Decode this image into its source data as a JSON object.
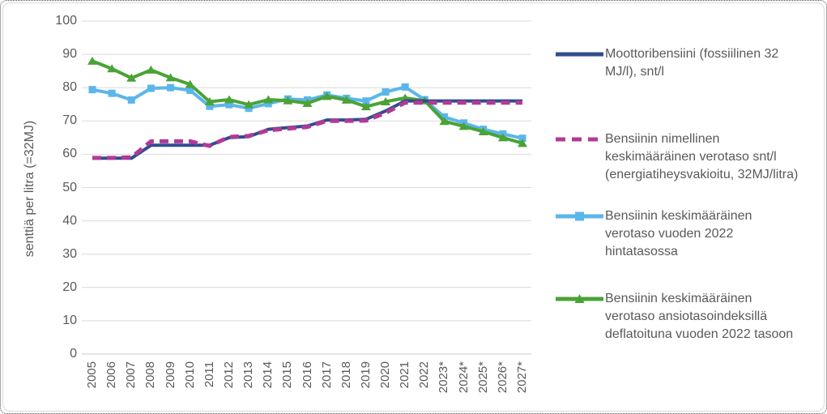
{
  "chart_data": {
    "type": "line",
    "title": "",
    "xlabel": "",
    "ylabel": "senttiä per litra (=32MJ)",
    "ylim": [
      0,
      100
    ],
    "ytick_step": 10,
    "grid": "horizontal",
    "legend_position": "right",
    "gridline_color": "#d9d9d9",
    "axis_line_color": "#c8c8c8",
    "axis_text_color": "#595959",
    "categories": [
      "2005",
      "2006",
      "2007",
      "2008",
      "2009",
      "2010",
      "2011",
      "2012",
      "2013",
      "2014",
      "2015",
      "2016",
      "2017",
      "2018",
      "2019",
      "2020",
      "2021",
      "2022",
      "2023*",
      "2024*",
      "2025*",
      "2026*",
      "2027*"
    ],
    "series": [
      {
        "name": "Moottoribensiini (fossiilinen 32 MJ/l), snt/l",
        "color": "#2F4D8F",
        "style": "solid",
        "marker": "none",
        "values": [
          58.8,
          58.8,
          58.8,
          62.7,
          62.7,
          62.7,
          62.7,
          65.0,
          65.3,
          67.5,
          68.0,
          68.5,
          70.3,
          70.3,
          70.5,
          73.0,
          76.0,
          76.0,
          76.0,
          76.0,
          76.0,
          76.0,
          76.0
        ]
      },
      {
        "name": "Bensiinin nimellinen keskimääräinen verotaso snt/l (energiatiheysvakioitu, 32MJ/litra)",
        "color": "#B23A97",
        "style": "dashed",
        "marker": "none",
        "values": [
          58.9,
          58.9,
          59.1,
          63.9,
          63.9,
          63.9,
          62.5,
          65.2,
          65.5,
          67.2,
          67.7,
          68.2,
          70.0,
          70.0,
          70.1,
          72.4,
          75.5,
          75.5,
          75.5,
          75.5,
          75.5,
          75.5,
          75.5
        ]
      },
      {
        "name": "Bensiinin keskimääräinen verotaso vuoden 2022 hintatasossa",
        "color": "#5BB6EA",
        "style": "solid",
        "marker": "square",
        "values": [
          79.4,
          78.3,
          76.3,
          79.8,
          80.0,
          79.2,
          74.4,
          74.9,
          73.8,
          75.2,
          76.6,
          76.3,
          77.8,
          76.8,
          76.0,
          78.7,
          80.2,
          76.4,
          71.2,
          69.4,
          67.5,
          66.1,
          64.8
        ]
      },
      {
        "name": "Bensiinin keskimääräinen verotaso ansiotasoindeksillä deflatoituna vuoden 2022 tasoon",
        "color": "#4AA336",
        "style": "solid",
        "marker": "triangle",
        "values": [
          88.0,
          85.7,
          82.9,
          85.3,
          83.0,
          81.0,
          75.8,
          76.4,
          74.9,
          76.4,
          76.1,
          75.3,
          77.4,
          76.3,
          74.3,
          75.8,
          76.9,
          76.1,
          69.9,
          68.4,
          66.8,
          65.0,
          63.3
        ]
      }
    ]
  }
}
